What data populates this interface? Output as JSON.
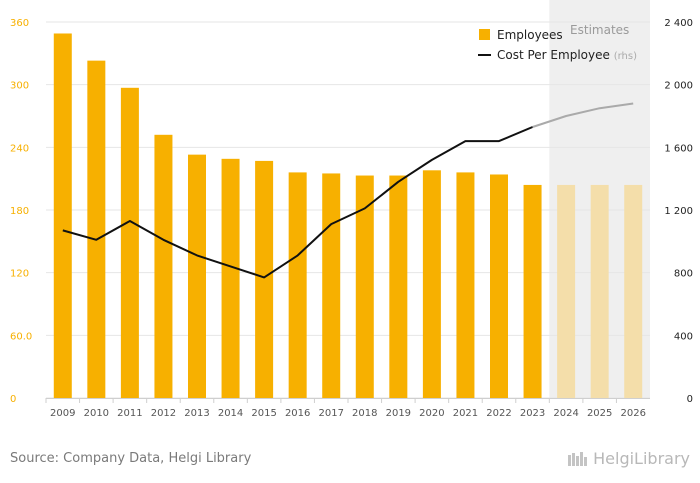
{
  "chart_data": {
    "type": "bar",
    "categories": [
      "2009",
      "2010",
      "2011",
      "2012",
      "2013",
      "2014",
      "2015",
      "2016",
      "2017",
      "2018",
      "2019",
      "2020",
      "2021",
      "2022",
      "2023",
      "2024",
      "2025",
      "2026"
    ],
    "estimates_from": "2024",
    "estimates_label": "Estimates",
    "series": [
      {
        "name": "Employees",
        "kind": "bar",
        "axis": "left",
        "values": [
          349,
          323,
          297,
          252,
          233,
          229,
          227,
          216,
          215,
          213,
          213,
          218,
          216,
          214,
          204,
          204,
          204,
          204
        ]
      },
      {
        "name": "Cost Per Employee",
        "name_suffix": "(rhs)",
        "kind": "line",
        "axis": "right",
        "values": [
          1070,
          1010,
          1130,
          1010,
          910,
          840,
          770,
          910,
          1110,
          1210,
          1380,
          1520,
          1640,
          1640,
          1730,
          1800,
          1850,
          1880
        ]
      }
    ],
    "y_left": {
      "min": 0,
      "max": 360,
      "ticks": [
        "0",
        "60.0",
        "120",
        "180",
        "240",
        "300",
        "360"
      ]
    },
    "y_right": {
      "min": 0,
      "max": 2400,
      "ticks": [
        "0",
        "400",
        "800",
        "1 200",
        "1 600",
        "2 000",
        "2 400"
      ]
    },
    "legend_position": "top-right",
    "grid": true,
    "colors": {
      "bar": "#f7b000",
      "bar_estimate": "#f4deaa",
      "line": "#111111",
      "line_estimate": "#aaaaaa",
      "estimate_band": "#efefef",
      "left_axis": "#f7b000",
      "right_axis": "#222222"
    }
  },
  "footer": {
    "source": "Source: Company Data, Helgi Library",
    "brand": "HelgiLibrary"
  }
}
